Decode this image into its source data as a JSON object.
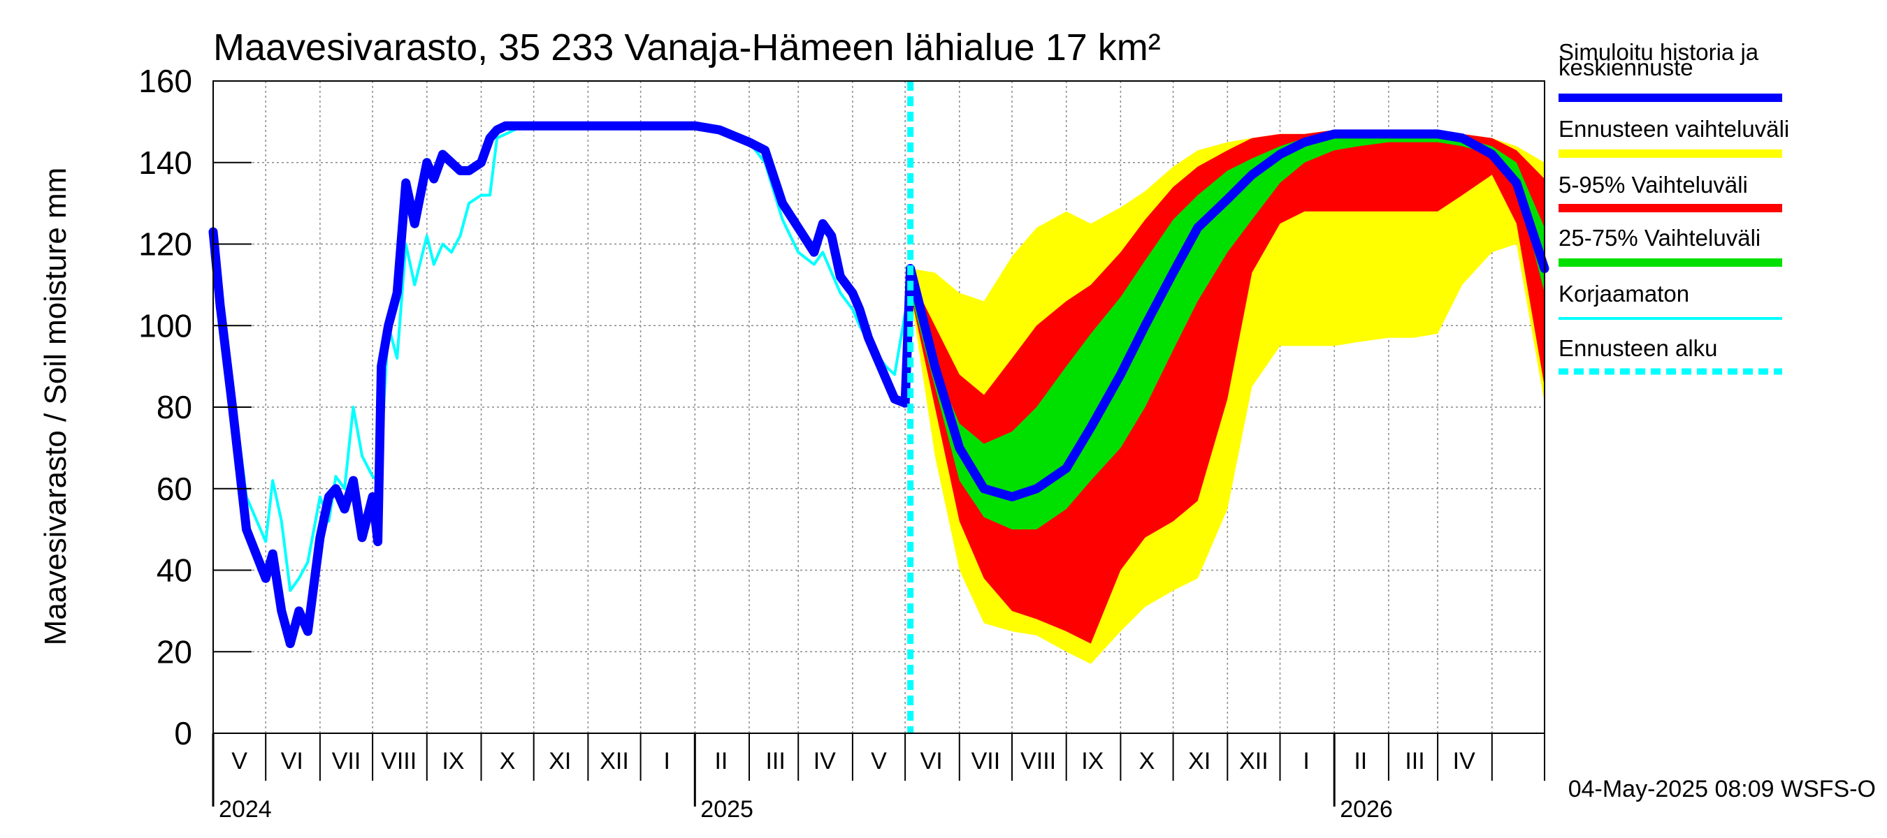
{
  "chart_data": {
    "type": "area",
    "title": "Maavesivarasto, 35 233 Vanaja-Hämeen lähialue 17 km²",
    "ylabel": "Maavesivarasto / Soil moisture   mm",
    "ylim": [
      0,
      160
    ],
    "yticks": [
      0,
      20,
      40,
      60,
      80,
      100,
      120,
      140,
      160
    ],
    "xlim": [
      "2024-04-01",
      "2026-05-01"
    ],
    "grid": true,
    "legend_position": "right",
    "month_labels": [
      {
        "label": "V",
        "mid": "2024-04-16"
      },
      {
        "label": "VI",
        "mid": "2024-05-16"
      },
      {
        "label": "VII",
        "mid": "2024-06-16"
      },
      {
        "label": "VIII",
        "mid": "2024-07-16"
      },
      {
        "label": "IX",
        "mid": "2024-08-16"
      },
      {
        "label": "X",
        "mid": "2024-09-16"
      },
      {
        "label": "XI",
        "mid": "2024-10-16"
      },
      {
        "label": "XII",
        "mid": "2024-11-16"
      },
      {
        "label": "I",
        "mid": "2024-12-16"
      },
      {
        "label": "II",
        "mid": "2025-01-16"
      },
      {
        "label": "III",
        "mid": "2025-02-16"
      },
      {
        "label": "IV",
        "mid": "2025-03-16"
      },
      {
        "label": "V",
        "mid": "2025-04-16"
      },
      {
        "label": "VI",
        "mid": "2025-05-16"
      },
      {
        "label": "VII",
        "mid": "2025-06-16"
      },
      {
        "label": "VIII",
        "mid": "2025-07-16"
      },
      {
        "label": "IX",
        "mid": "2025-08-16"
      },
      {
        "label": "X",
        "mid": "2025-09-16"
      },
      {
        "label": "XI",
        "mid": "2025-10-16"
      },
      {
        "label": "XII",
        "mid": "2025-11-16"
      },
      {
        "label": "I",
        "mid": "2025-12-16"
      },
      {
        "label": "II",
        "mid": "2026-01-16"
      },
      {
        "label": "III",
        "mid": "2026-02-16"
      },
      {
        "label": "IV",
        "mid": "2026-03-16"
      }
    ],
    "year_labels": [
      {
        "label": "2024",
        "at": "2024-04-01"
      },
      {
        "label": "2025",
        "at": "2025-01-01"
      },
      {
        "label": "2026",
        "at": "2026-01-01"
      }
    ],
    "forecast_start": "2025-05-04",
    "series": [
      {
        "name": "Ennusteen vaihteluväli",
        "kind": "band",
        "color": "#ffff00",
        "x": [
          "2025-05-04",
          "2025-05-18",
          "2025-06-01",
          "2025-06-15",
          "2025-07-01",
          "2025-07-15",
          "2025-08-01",
          "2025-08-15",
          "2025-09-01",
          "2025-09-15",
          "2025-10-01",
          "2025-10-15",
          "2025-11-01",
          "2025-11-15",
          "2025-12-01",
          "2025-12-15",
          "2026-01-01",
          "2026-01-15",
          "2026-02-01",
          "2026-02-15",
          "2026-03-01",
          "2026-03-15",
          "2026-04-01",
          "2026-04-15",
          "2026-05-01"
        ],
        "upper": [
          114,
          113,
          108,
          106,
          117,
          124,
          128,
          125,
          129,
          133,
          139,
          143,
          145,
          146,
          147,
          147,
          148,
          148,
          148,
          148,
          148,
          147,
          146,
          144,
          140
        ],
        "lower": [
          108,
          68,
          40,
          27,
          25,
          24,
          20,
          17,
          25,
          31,
          35,
          38,
          55,
          85,
          95,
          95,
          95,
          96,
          97,
          97,
          98,
          110,
          118,
          120,
          81
        ]
      },
      {
        "name": "5-95% Vaihteluväli",
        "kind": "band",
        "color": "#ff0000",
        "x": [
          "2025-05-04",
          "2025-05-18",
          "2025-06-01",
          "2025-06-15",
          "2025-07-01",
          "2025-07-15",
          "2025-08-01",
          "2025-08-15",
          "2025-09-01",
          "2025-09-15",
          "2025-10-01",
          "2025-10-15",
          "2025-11-01",
          "2025-11-15",
          "2025-12-01",
          "2025-12-15",
          "2026-01-01",
          "2026-01-15",
          "2026-02-01",
          "2026-02-15",
          "2026-03-01",
          "2026-03-15",
          "2026-04-01",
          "2026-04-15",
          "2026-05-01"
        ],
        "upper": [
          112,
          100,
          88,
          83,
          92,
          100,
          106,
          110,
          118,
          126,
          134,
          139,
          143,
          146,
          147,
          147,
          148,
          148,
          148,
          148,
          148,
          147,
          146,
          143,
          136
        ],
        "lower": [
          108,
          80,
          52,
          38,
          30,
          28,
          25,
          22,
          40,
          48,
          52,
          57,
          82,
          113,
          125,
          128,
          128,
          128,
          128,
          128,
          128,
          132,
          137,
          125,
          85
        ]
      },
      {
        "name": "25-75% Vaihteluväli",
        "kind": "band",
        "color": "#00e000",
        "x": [
          "2025-05-04",
          "2025-05-18",
          "2025-06-01",
          "2025-06-15",
          "2025-07-01",
          "2025-07-15",
          "2025-08-01",
          "2025-08-15",
          "2025-09-01",
          "2025-09-15",
          "2025-10-01",
          "2025-10-15",
          "2025-11-01",
          "2025-11-15",
          "2025-12-01",
          "2025-12-15",
          "2026-01-01",
          "2026-01-15",
          "2026-02-01",
          "2026-02-15",
          "2026-03-01",
          "2026-03-15",
          "2026-04-01",
          "2026-04-15",
          "2026-05-01"
        ],
        "upper": [
          110,
          90,
          76,
          71,
          74,
          80,
          90,
          98,
          107,
          116,
          126,
          132,
          138,
          141,
          144,
          146,
          147,
          147,
          147,
          147,
          147,
          146,
          144,
          140,
          124
        ],
        "lower": [
          108,
          85,
          62,
          53,
          50,
          50,
          55,
          62,
          70,
          80,
          94,
          106,
          118,
          126,
          135,
          140,
          143,
          144,
          145,
          145,
          145,
          144,
          142,
          135,
          108
        ]
      },
      {
        "name": "Simuloitu historia ja keskiennuste",
        "kind": "line",
        "color": "#0000ff",
        "x": [
          "2024-04-01",
          "2024-04-05",
          "2024-04-12",
          "2024-04-20",
          "2024-05-01",
          "2024-05-05",
          "2024-05-10",
          "2024-05-15",
          "2024-05-20",
          "2024-05-25",
          "2024-06-01",
          "2024-06-06",
          "2024-06-10",
          "2024-06-15",
          "2024-06-20",
          "2024-06-25",
          "2024-07-01",
          "2024-07-04",
          "2024-07-06",
          "2024-07-10",
          "2024-07-15",
          "2024-07-20",
          "2024-07-25",
          "2024-08-01",
          "2024-08-05",
          "2024-08-10",
          "2024-08-15",
          "2024-08-20",
          "2024-08-25",
          "2024-09-01",
          "2024-09-06",
          "2024-09-10",
          "2024-09-15",
          "2024-09-20",
          "2024-09-25",
          "2024-10-01",
          "2024-10-05",
          "2024-10-10",
          "2024-10-20",
          "2024-11-01",
          "2024-11-15",
          "2024-12-01",
          "2024-12-15",
          "2025-01-01",
          "2025-01-15",
          "2025-02-01",
          "2025-02-10",
          "2025-02-20",
          "2025-03-01",
          "2025-03-10",
          "2025-03-15",
          "2025-03-20",
          "2025-03-25",
          "2025-04-01",
          "2025-04-05",
          "2025-04-10",
          "2025-04-15",
          "2025-04-20",
          "2025-04-25",
          "2025-05-01",
          "2025-05-04",
          "2025-05-18",
          "2025-06-01",
          "2025-06-15",
          "2025-07-01",
          "2025-07-15",
          "2025-08-01",
          "2025-08-15",
          "2025-09-01",
          "2025-09-15",
          "2025-10-01",
          "2025-10-15",
          "2025-11-01",
          "2025-11-15",
          "2025-12-01",
          "2025-12-15",
          "2026-01-01",
          "2026-01-15",
          "2026-02-01",
          "2026-02-15",
          "2026-03-01",
          "2026-03-15",
          "2026-04-01",
          "2026-04-15",
          "2026-05-01"
        ],
        "values": [
          123,
          105,
          80,
          50,
          38,
          44,
          30,
          22,
          30,
          25,
          48,
          58,
          60,
          55,
          62,
          48,
          58,
          47,
          90,
          100,
          108,
          135,
          125,
          140,
          136,
          142,
          140,
          138,
          138,
          140,
          146,
          148,
          149,
          149,
          149,
          149,
          149,
          149,
          149,
          149,
          149,
          149,
          149,
          149,
          148,
          145,
          143,
          130,
          124,
          118,
          125,
          122,
          112,
          108,
          104,
          97,
          92,
          87,
          82,
          81,
          114,
          90,
          70,
          60,
          58,
          60,
          65,
          75,
          88,
          100,
          113,
          124,
          131,
          137,
          142,
          145,
          147,
          147,
          147,
          147,
          147,
          146,
          142,
          135,
          114
        ]
      },
      {
        "name": "Korjaamaton",
        "kind": "line",
        "color": "#00ffff",
        "x": [
          "2024-04-01",
          "2024-04-05",
          "2024-04-12",
          "2024-04-20",
          "2024-05-01",
          "2024-05-05",
          "2024-05-10",
          "2024-05-15",
          "2024-05-20",
          "2024-05-25",
          "2024-06-01",
          "2024-06-06",
          "2024-06-10",
          "2024-06-15",
          "2024-06-20",
          "2024-06-25",
          "2024-07-01",
          "2024-07-04",
          "2024-07-06",
          "2024-07-10",
          "2024-07-15",
          "2024-07-20",
          "2024-07-25",
          "2024-08-01",
          "2024-08-05",
          "2024-08-10",
          "2024-08-15",
          "2024-08-20",
          "2024-08-25",
          "2024-09-01",
          "2024-09-06",
          "2024-09-10",
          "2024-09-15",
          "2024-09-20",
          "2024-09-25",
          "2024-10-01",
          "2024-10-05",
          "2024-10-10",
          "2024-10-20",
          "2024-11-01",
          "2024-11-15",
          "2024-12-01",
          "2024-12-15",
          "2025-01-01",
          "2025-01-15",
          "2025-02-01",
          "2025-02-10",
          "2025-02-20",
          "2025-03-01",
          "2025-03-10",
          "2025-03-15",
          "2025-03-20",
          "2025-03-25",
          "2025-04-01",
          "2025-04-05",
          "2025-04-10",
          "2025-04-15",
          "2025-04-20",
          "2025-04-25",
          "2025-05-01",
          "2025-05-04"
        ],
        "values": [
          123,
          108,
          85,
          58,
          47,
          62,
          52,
          35,
          38,
          42,
          58,
          52,
          63,
          60,
          80,
          68,
          63,
          62,
          70,
          100,
          92,
          120,
          110,
          122,
          115,
          120,
          118,
          122,
          130,
          132,
          132,
          146,
          147,
          148,
          149,
          149,
          149,
          149,
          149,
          149,
          149,
          149,
          149,
          149,
          148,
          145,
          140,
          126,
          118,
          115,
          118,
          113,
          108,
          104,
          100,
          96,
          93,
          90,
          88,
          103,
          104
        ]
      }
    ],
    "legend": [
      {
        "label": "Simuloitu historia ja keskiennuste",
        "lines": [
          "Simuloitu historia ja",
          "keskiennuste"
        ],
        "color": "#0000ff",
        "style": "solid"
      },
      {
        "label": "Ennusteen vaihteluväli",
        "lines": [
          "Ennusteen vaihteluväli"
        ],
        "color": "#ffff00",
        "style": "solid"
      },
      {
        "label": "5-95% Vaihteluväli",
        "lines": [
          "5-95% Vaihteluväli"
        ],
        "color": "#ff0000",
        "style": "solid"
      },
      {
        "label": "25-75% Vaihteluväli",
        "lines": [
          "25-75% Vaihteluväli"
        ],
        "color": "#00e000",
        "style": "solid"
      },
      {
        "label": "Korjaamaton",
        "lines": [
          "Korjaamaton"
        ],
        "color": "#00ffff",
        "style": "thin"
      },
      {
        "label": "Ennusteen alku",
        "lines": [
          "Ennusteen alku"
        ],
        "color": "#00ffff",
        "style": "dashed"
      }
    ],
    "footer": "04-May-2025 08:09 WSFS-O"
  }
}
